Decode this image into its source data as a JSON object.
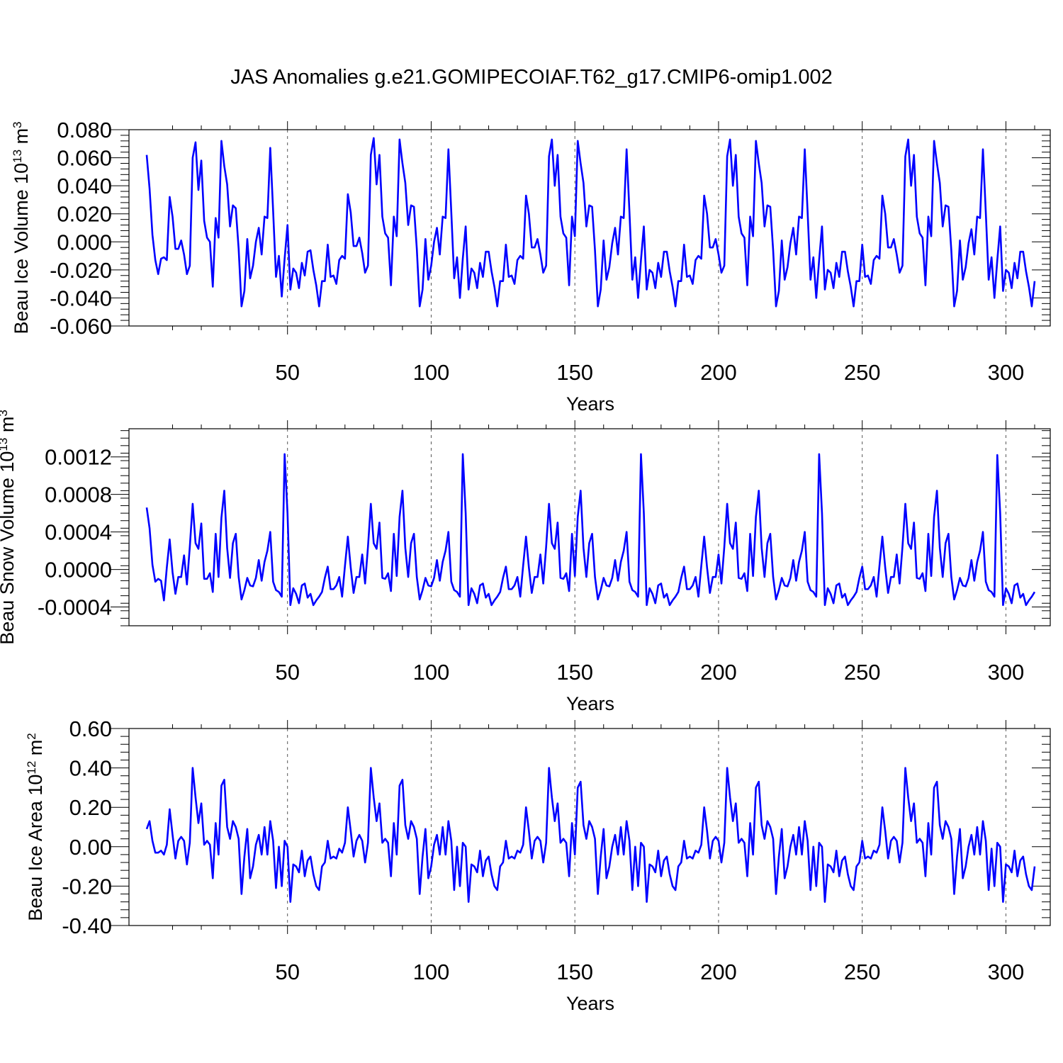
{
  "figure_title": "JAS Anomalies g.e21.GOMIPECOIAF.T62_g17.CMIP6-omip1.002",
  "colors": {
    "series": "#0000ff",
    "axis": "#000000",
    "grid": "#555555"
  },
  "chart_data": [
    {
      "type": "line",
      "title": "JAS Anomalies g.e21.GOMIPECOIAF.T62_g17.CMIP6-omip1.002",
      "ylabel": "Beau Ice Volume 10",
      "ylabel_sup": "13",
      "ylabel_unit": "m",
      "ylabel_unit_sup": "3",
      "xlabel": "Years",
      "xlim": [
        1,
        310
      ],
      "ylim": [
        -0.06,
        0.08
      ],
      "xticks": [
        50,
        100,
        150,
        200,
        250,
        300
      ],
      "xtick_labels": [
        "50",
        "100",
        "150",
        "200",
        "250",
        "300"
      ],
      "yticks": [
        -0.06,
        -0.04,
        -0.02,
        0.0,
        0.02,
        0.04,
        0.06,
        0.08
      ],
      "ytick_labels": [
        "-0.060",
        "-0.040",
        "-0.020",
        "0.000",
        "0.020",
        "0.040",
        "0.060",
        "0.080"
      ],
      "grid": "vertical-dashed-at-x-ticks",
      "x_start": 1,
      "values": [
        0.062,
        0.038,
        0.005,
        -0.013,
        -0.023,
        -0.012,
        -0.011,
        -0.013,
        0.032,
        0.018,
        -0.005,
        -0.005,
        0.001,
        -0.009,
        -0.023,
        -0.017,
        0.06,
        0.071,
        0.037,
        0.058,
        0.015,
        0.003,
        0.0,
        -0.032,
        0.017,
        0.003,
        0.072,
        0.054,
        0.041,
        0.011,
        0.026,
        0.024,
        -0.005,
        -0.046,
        -0.035,
        0.002,
        -0.026,
        -0.017,
        0.0,
        0.01,
        -0.009,
        0.018,
        0.017,
        0.067,
        0.022,
        -0.025,
        -0.01,
        -0.039,
        -0.012,
        0.012,
        -0.034,
        -0.019,
        -0.022,
        -0.033,
        -0.015,
        -0.024,
        -0.007,
        -0.006,
        -0.02,
        -0.031,
        -0.046,
        -0.028,
        -0.028,
        -0.002,
        -0.025,
        -0.024,
        -0.03,
        -0.013,
        -0.01,
        -0.012,
        0.034,
        0.021,
        -0.003,
        -0.003,
        0.003,
        -0.008,
        -0.022,
        -0.017,
        0.062,
        0.074,
        0.041,
        0.062,
        0.018,
        0.006,
        0.003,
        -0.031,
        0.018,
        0.004,
        0.073,
        0.056,
        0.042,
        0.012,
        0.026,
        0.025,
        -0.005,
        -0.046,
        -0.034,
        0.002,
        -0.027,
        -0.017,
        0.0,
        0.01,
        -0.009,
        0.018,
        0.017,
        0.066,
        0.021,
        -0.026,
        -0.011,
        -0.04,
        -0.012,
        0.011,
        -0.034,
        -0.019,
        -0.022,
        -0.033,
        -0.015,
        -0.025,
        -0.007,
        -0.007,
        -0.021,
        -0.032,
        -0.046,
        -0.028,
        -0.028,
        -0.002,
        -0.025,
        -0.024,
        -0.03,
        -0.013,
        -0.01,
        -0.012,
        0.033,
        0.02,
        -0.004,
        -0.004,
        0.002,
        -0.009,
        -0.022,
        -0.017,
        0.061,
        0.073,
        0.04,
        0.062,
        0.018,
        0.006,
        0.003,
        -0.031,
        0.018,
        0.004,
        0.072,
        0.056,
        0.042,
        0.011,
        0.026,
        0.025,
        -0.006,
        -0.046,
        -0.034,
        0.001,
        -0.027,
        -0.018,
        -0.001,
        0.01,
        -0.009,
        0.018,
        0.017,
        0.066,
        0.021,
        -0.027,
        -0.011,
        -0.04,
        -0.013,
        0.011,
        -0.034,
        -0.02,
        -0.022,
        -0.033,
        -0.015,
        -0.025,
        -0.007,
        -0.007,
        -0.021,
        -0.032,
        -0.046,
        -0.028,
        -0.028,
        -0.002,
        -0.025,
        -0.024,
        -0.03,
        -0.013,
        -0.01,
        -0.012,
        0.033,
        0.02,
        -0.004,
        -0.004,
        0.002,
        -0.009,
        -0.022,
        -0.017,
        0.061,
        0.073,
        0.04,
        0.062,
        0.018,
        0.006,
        0.003,
        -0.031,
        0.018,
        0.004,
        0.072,
        0.056,
        0.042,
        0.011,
        0.026,
        0.025,
        -0.006,
        -0.046,
        -0.035,
        0.001,
        -0.027,
        -0.018,
        -0.001,
        0.01,
        -0.009,
        0.018,
        0.017,
        0.066,
        0.021,
        -0.027,
        -0.011,
        -0.04,
        -0.013,
        0.011,
        -0.034,
        -0.02,
        -0.022,
        -0.033,
        -0.015,
        -0.025,
        -0.007,
        -0.007,
        -0.021,
        -0.032,
        -0.046,
        -0.028,
        -0.028,
        -0.002,
        -0.025,
        -0.024,
        -0.03,
        -0.013,
        -0.01,
        -0.012,
        0.033,
        0.02,
        -0.004,
        -0.004,
        0.002,
        -0.009,
        -0.022,
        -0.017,
        0.061,
        0.073,
        0.04,
        0.062,
        0.018,
        0.006,
        0.003,
        -0.031,
        0.018,
        0.004,
        0.072,
        0.056,
        0.042,
        0.011,
        0.026,
        0.025,
        -0.006,
        -0.046,
        -0.035,
        0.001,
        -0.027,
        -0.018,
        -0.001,
        0.009,
        -0.009,
        0.018,
        0.017,
        0.066,
        0.021,
        -0.027,
        -0.011,
        -0.04,
        -0.013,
        0.011,
        -0.035,
        -0.02,
        -0.022,
        -0.033,
        -0.015,
        -0.026,
        -0.007,
        -0.007,
        -0.021,
        -0.032,
        -0.046,
        -0.028
      ]
    },
    {
      "type": "line",
      "ylabel": "Beau Snow Volume 10",
      "ylabel_sup": "13",
      "ylabel_unit": "m",
      "ylabel_unit_sup": "3",
      "xlabel": "Years",
      "xlim": [
        1,
        310
      ],
      "ylim": [
        -0.0006,
        0.0015
      ],
      "xticks": [
        50,
        100,
        150,
        200,
        250,
        300
      ],
      "xtick_labels": [
        "50",
        "100",
        "150",
        "200",
        "250",
        "300"
      ],
      "yticks": [
        -0.0004,
        0.0,
        0.0004,
        0.0008,
        0.0012
      ],
      "ytick_labels": [
        "-0.0004",
        "0.0000",
        "0.0004",
        "0.0008",
        "0.0012"
      ],
      "grid": "vertical-dashed-at-x-ticks",
      "x_start": 1,
      "values": [
        0.00066,
        0.00044,
        5e-05,
        -0.00013,
        -0.0001,
        -0.00012,
        -0.00033,
        2e-05,
        0.00032,
        -3e-05,
        -0.00026,
        -8e-05,
        -8e-05,
        0.00015,
        -0.00016,
        0.00024,
        0.0007,
        0.00028,
        0.00022,
        0.00049,
        -0.0001,
        -0.0001,
        -4e-05,
        -0.00024,
        0.00038,
        -8e-05,
        0.00055,
        0.00084,
        0.00023,
        -9e-05,
        0.00028,
        0.00038,
        -8e-05,
        -0.00032,
        -0.00022,
        -9e-05,
        -0.00017,
        -0.00018,
        -9e-05,
        0.0001,
        -0.00012,
        8e-05,
        0.0002,
        0.0004,
        -0.00013,
        -0.00022,
        -0.00024,
        -0.00029,
        0.00123,
        0.0006,
        -0.00038,
        -0.0002,
        -0.00026,
        -0.00036,
        -0.00017,
        -0.00015,
        -0.0003,
        -0.00026,
        -0.00038,
        -0.00033,
        -0.00029,
        -0.00024,
        -9e-05,
        3e-05,
        -0.00021,
        -0.00021,
        -0.00017,
        -8e-05,
        -0.00029,
        4e-05,
        0.00035,
        2e-05,
        -0.00025,
        -8e-05,
        -8e-05,
        0.00016,
        -0.00015,
        0.00024,
        0.0007,
        0.00028,
        0.00022,
        0.0005,
        -9e-05,
        -0.0001,
        -4e-05,
        -0.00023,
        0.00038,
        -7e-05,
        0.00056,
        0.00084,
        0.00023,
        -8e-05,
        0.00028,
        0.00038,
        -8e-05,
        -0.00032,
        -0.00022,
        -9e-05,
        -0.00017,
        -0.00018,
        -9e-05,
        0.0001,
        -0.00012,
        8e-05,
        0.0002,
        0.0004,
        -0.00013,
        -0.00022,
        -0.00024,
        -0.00029,
        0.00123,
        0.0006,
        -0.00038,
        -0.0002,
        -0.00026,
        -0.00036,
        -0.00017,
        -0.00015,
        -0.0003,
        -0.00026,
        -0.00038,
        -0.00033,
        -0.00029,
        -0.00024,
        -9e-05,
        3e-05,
        -0.00021,
        -0.00021,
        -0.00017,
        -8e-05,
        -0.00029,
        4e-05,
        0.00035,
        2e-05,
        -0.00025,
        -8e-05,
        -8e-05,
        0.00016,
        -0.00015,
        0.00024,
        0.0007,
        0.00028,
        0.00022,
        0.0005,
        -9e-05,
        -0.0001,
        -4e-05,
        -0.00023,
        0.00038,
        -7e-05,
        0.00056,
        0.00084,
        0.00023,
        -8e-05,
        0.00028,
        0.00038,
        -8e-05,
        -0.00032,
        -0.00022,
        -9e-05,
        -0.00017,
        -0.00018,
        -9e-05,
        0.0001,
        -0.00012,
        8e-05,
        0.0002,
        0.0004,
        -0.00013,
        -0.00022,
        -0.00024,
        -0.00029,
        0.00123,
        0.0006,
        -0.00038,
        -0.0002,
        -0.00026,
        -0.00036,
        -0.00017,
        -0.00015,
        -0.0003,
        -0.00026,
        -0.00038,
        -0.00033,
        -0.00029,
        -0.00024,
        -9e-05,
        3e-05,
        -0.00021,
        -0.00021,
        -0.00017,
        -8e-05,
        -0.00029,
        4e-05,
        0.00035,
        2e-05,
        -0.00025,
        -8e-05,
        -8e-05,
        0.00016,
        -0.00015,
        0.00024,
        0.0007,
        0.00028,
        0.00022,
        0.0005,
        -9e-05,
        -0.0001,
        -4e-05,
        -0.00023,
        0.00038,
        -7e-05,
        0.00056,
        0.00084,
        0.00023,
        -8e-05,
        0.00028,
        0.00038,
        -8e-05,
        -0.00032,
        -0.00022,
        -9e-05,
        -0.00017,
        -0.00018,
        -9e-05,
        0.0001,
        -0.00012,
        8e-05,
        0.0002,
        0.0004,
        -0.00013,
        -0.00022,
        -0.00024,
        -0.00029,
        0.00123,
        0.0006,
        -0.00038,
        -0.0002,
        -0.00026,
        -0.00036,
        -0.00017,
        -0.00015,
        -0.0003,
        -0.00026,
        -0.00038,
        -0.00033,
        -0.00029,
        -0.00024,
        -9e-05,
        3e-05,
        -0.00021,
        -0.00021,
        -0.00017,
        -8e-05,
        -0.00029,
        4e-05,
        0.00035,
        2e-05,
        -0.00025,
        -8e-05,
        -8e-05,
        0.00016,
        -0.00015,
        0.00024,
        0.0007,
        0.00028,
        0.00022,
        0.0005,
        -9e-05,
        -0.0001,
        -4e-05,
        -0.00023,
        0.00038,
        -7e-05,
        0.00056,
        0.00084,
        0.00023,
        -8e-05,
        0.00028,
        0.00038,
        -8e-05,
        -0.00032,
        -0.00022,
        -9e-05,
        -0.00017,
        -0.00018,
        -9e-05,
        0.0001,
        -0.00012,
        8e-05,
        0.0002,
        0.0004,
        -0.00013,
        -0.00022,
        -0.00024,
        -0.00029,
        0.00122,
        0.0006,
        -0.00038,
        -0.0002,
        -0.00026,
        -0.00036,
        -0.00017,
        -0.00015,
        -0.0003,
        -0.00026,
        -0.00038,
        -0.00033,
        -0.00029,
        -0.00024
      ]
    },
    {
      "type": "line",
      "ylabel": "Beau Ice Area 10",
      "ylabel_sup": "12",
      "ylabel_unit": "m",
      "ylabel_unit_sup": "2",
      "xlabel": "Years",
      "xlim": [
        1,
        310
      ],
      "ylim": [
        -0.4,
        0.6
      ],
      "xticks": [
        50,
        100,
        150,
        200,
        250,
        300
      ],
      "xtick_labels": [
        "50",
        "100",
        "150",
        "200",
        "250",
        "300"
      ],
      "yticks": [
        -0.4,
        -0.2,
        0.0,
        0.2,
        0.4,
        0.6
      ],
      "ytick_labels": [
        "-0.40",
        "-0.20",
        "0.00",
        "0.20",
        "0.40",
        "0.60"
      ],
      "grid": "vertical-dashed-at-x-ticks",
      "x_start": 1,
      "values": [
        0.09,
        0.13,
        0.03,
        -0.03,
        -0.03,
        -0.02,
        -0.04,
        0.01,
        0.19,
        0.06,
        -0.06,
        0.03,
        0.05,
        0.03,
        -0.09,
        0.02,
        0.4,
        0.25,
        0.12,
        0.22,
        0.01,
        0.03,
        0.01,
        -0.16,
        0.12,
        -0.04,
        0.31,
        0.34,
        0.1,
        0.04,
        0.13,
        0.1,
        0.04,
        -0.24,
        -0.05,
        0.09,
        -0.16,
        -0.1,
        0.01,
        0.06,
        -0.04,
        0.1,
        -0.04,
        0.13,
        0.03,
        -0.21,
        0.0,
        -0.2,
        0.03,
        0.0,
        -0.28,
        -0.09,
        -0.1,
        -0.13,
        -0.02,
        -0.15,
        -0.07,
        -0.05,
        -0.14,
        -0.2,
        -0.22,
        -0.1,
        -0.08,
        0.03,
        -0.06,
        -0.05,
        -0.06,
        -0.01,
        -0.03,
        0.02,
        0.2,
        0.08,
        -0.05,
        0.03,
        0.06,
        0.03,
        -0.08,
        0.02,
        0.4,
        0.25,
        0.13,
        0.22,
        0.02,
        0.04,
        0.02,
        -0.15,
        0.12,
        -0.04,
        0.31,
        0.34,
        0.11,
        0.04,
        0.13,
        0.1,
        0.04,
        -0.24,
        -0.05,
        0.09,
        -0.16,
        -0.1,
        0.01,
        0.06,
        -0.04,
        0.1,
        -0.04,
        0.13,
        0.03,
        -0.22,
        0.0,
        -0.2,
        0.02,
        0.0,
        -0.28,
        -0.09,
        -0.1,
        -0.13,
        -0.02,
        -0.15,
        -0.07,
        -0.05,
        -0.14,
        -0.2,
        -0.22,
        -0.1,
        -0.08,
        0.03,
        -0.06,
        -0.05,
        -0.06,
        -0.02,
        -0.03,
        0.01,
        0.2,
        0.08,
        -0.06,
        0.03,
        0.05,
        0.03,
        -0.08,
        0.02,
        0.4,
        0.25,
        0.13,
        0.22,
        0.02,
        0.04,
        0.02,
        -0.15,
        0.12,
        -0.04,
        0.3,
        0.33,
        0.11,
        0.04,
        0.13,
        0.1,
        0.04,
        -0.24,
        -0.05,
        0.09,
        -0.16,
        -0.1,
        0.0,
        0.06,
        -0.04,
        0.1,
        -0.04,
        0.13,
        0.03,
        -0.22,
        0.0,
        -0.2,
        0.02,
        0.0,
        -0.28,
        -0.09,
        -0.1,
        -0.13,
        -0.02,
        -0.15,
        -0.07,
        -0.05,
        -0.14,
        -0.2,
        -0.22,
        -0.1,
        -0.08,
        0.03,
        -0.06,
        -0.05,
        -0.06,
        -0.02,
        -0.03,
        0.01,
        0.2,
        0.08,
        -0.06,
        0.03,
        0.05,
        0.03,
        -0.08,
        0.02,
        0.4,
        0.25,
        0.13,
        0.22,
        0.02,
        0.04,
        0.02,
        -0.15,
        0.12,
        -0.04,
        0.3,
        0.33,
        0.11,
        0.04,
        0.13,
        0.1,
        0.04,
        -0.24,
        -0.05,
        0.09,
        -0.16,
        -0.1,
        0.0,
        0.06,
        -0.04,
        0.1,
        -0.04,
        0.13,
        0.03,
        -0.22,
        0.0,
        -0.2,
        0.02,
        0.0,
        -0.28,
        -0.09,
        -0.1,
        -0.13,
        -0.02,
        -0.15,
        -0.07,
        -0.05,
        -0.14,
        -0.2,
        -0.22,
        -0.1,
        -0.08,
        0.03,
        -0.06,
        -0.05,
        -0.06,
        -0.02,
        -0.03,
        0.01,
        0.2,
        0.08,
        -0.06,
        0.03,
        0.05,
        0.03,
        -0.08,
        0.02,
        0.4,
        0.25,
        0.13,
        0.22,
        0.02,
        0.04,
        0.02,
        -0.15,
        0.12,
        -0.04,
        0.3,
        0.33,
        0.11,
        0.04,
        0.13,
        0.1,
        0.04,
        -0.24,
        -0.05,
        0.09,
        -0.16,
        -0.1,
        0.0,
        0.06,
        -0.04,
        0.1,
        -0.04,
        0.13,
        0.03,
        -0.22,
        -0.01,
        -0.2,
        0.02,
        0.0,
        -0.28,
        -0.09,
        -0.1,
        -0.13,
        -0.02,
        -0.15,
        -0.07,
        -0.05,
        -0.14,
        -0.2,
        -0.22,
        -0.1
      ]
    }
  ]
}
